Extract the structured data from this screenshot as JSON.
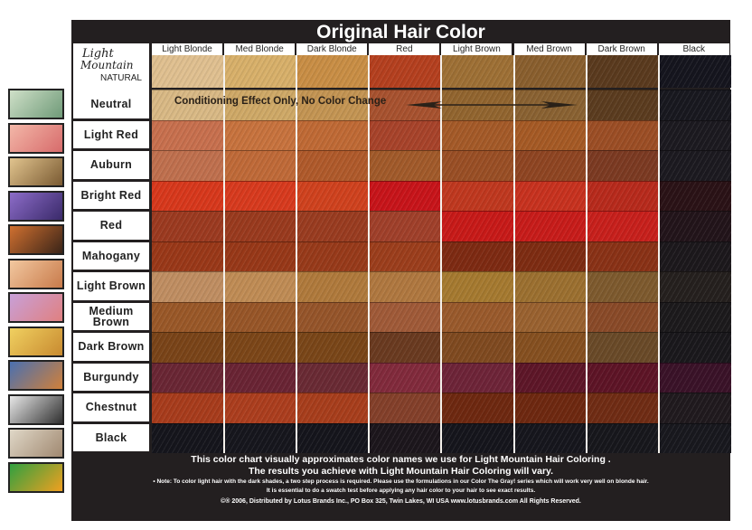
{
  "title": "Original Hair Color",
  "logo": {
    "line1": "Light",
    "line2": "Mountain",
    "line3": "NATURAL"
  },
  "columns": [
    "Light Blonde",
    "Med Blonde",
    "Dark Blonde",
    "Red",
    "Light Brown",
    "Med Brown",
    "Dark Brown",
    "Black"
  ],
  "original_colors": [
    "#e0c090",
    "#d8b06a",
    "#c98e45",
    "#b5401f",
    "#9e7035",
    "#8a5f2e",
    "#5a3a1e",
    "#15151e"
  ],
  "neutral_note": "Conditioning Effect Only, No Color Change",
  "rows": [
    {
      "label": "Neutral",
      "colors": [
        "#d9b985",
        "#cfa967",
        "#c49553",
        "#a8522f",
        "#92652f",
        "#8a6232",
        "#5b3c1f",
        "#18181f"
      ]
    },
    {
      "label": "Light Red",
      "colors": [
        "#c8704e",
        "#c8733e",
        "#c06a35",
        "#a8432a",
        "#a55a28",
        "#a65a25",
        "#9c4e25",
        "#1c1a20"
      ]
    },
    {
      "label": "Auburn",
      "colors": [
        "#c0704e",
        "#c06a38",
        "#b05a2b",
        "#a25a2a",
        "#9a4f25",
        "#8f4522",
        "#7c3a22",
        "#1c1a20"
      ]
    },
    {
      "label": "Bright Red",
      "colors": [
        "#d8381c",
        "#d83a1e",
        "#d0421e",
        "#c8141a",
        "#c0381f",
        "#c8321f",
        "#b82a1c",
        "#2a1216"
      ]
    },
    {
      "label": "Red",
      "colors": [
        "#9c3a20",
        "#9a3a1e",
        "#9a3c20",
        "#a0402a",
        "#c81a18",
        "#c81c1a",
        "#c8201c",
        "#22141a"
      ]
    },
    {
      "label": "Mahogany",
      "colors": [
        "#9a3818",
        "#983818",
        "#983a1a",
        "#9c3e1c",
        "#7e2a12",
        "#7e2c12",
        "#8a3216",
        "#1c181c"
      ]
    },
    {
      "label": "Light Brown",
      "colors": [
        "#c08e62",
        "#c08c55",
        "#b07a3c",
        "#b07840",
        "#a67a30",
        "#9c7030",
        "#7e5a2e",
        "#25201e"
      ]
    },
    {
      "label": "Medium Brown",
      "colors": [
        "#9a5828",
        "#985628",
        "#96552a",
        "#a05a38",
        "#9a5a2c",
        "#9a6230",
        "#8a4a28",
        "#1c1a1c"
      ]
    },
    {
      "label": "Dark Brown",
      "colors": [
        "#7a4418",
        "#7c4618",
        "#7a4618",
        "#6a3a20",
        "#804a20",
        "#865020",
        "#6a4a28",
        "#1a181c"
      ]
    },
    {
      "label": "Burgundy",
      "colors": [
        "#6a2634",
        "#6a2434",
        "#6a2a34",
        "#822a3c",
        "#6e2438",
        "#5e1628",
        "#5e1426",
        "#3a1228"
      ]
    },
    {
      "label": "Chestnut",
      "colors": [
        "#a83c1c",
        "#ac3e1e",
        "#a83e1c",
        "#84402a",
        "#6e2810",
        "#6e2810",
        "#702c14",
        "#201a1e"
      ]
    },
    {
      "label": "Black",
      "colors": [
        "#15151c",
        "#16161d",
        "#15151c",
        "#1c161c",
        "#15151c",
        "#16161d",
        "#17171c",
        "#18181e"
      ]
    }
  ],
  "thumbnails": [
    {
      "icon": "heron-icon",
      "colors": [
        "#cfe0c8",
        "#6f9a78"
      ]
    },
    {
      "icon": "flowers-icon",
      "colors": [
        "#f3b7a8",
        "#d76b6b"
      ]
    },
    {
      "icon": "cheetah-icon",
      "colors": [
        "#e1c48e",
        "#7a5a32"
      ]
    },
    {
      "icon": "wolf-icon",
      "colors": [
        "#8c6cc8",
        "#3a2a6a"
      ]
    },
    {
      "icon": "fox-icon",
      "colors": [
        "#d07030",
        "#3a2418"
      ]
    },
    {
      "icon": "nautilus-icon",
      "colors": [
        "#f2c8a0",
        "#c87a4a"
      ]
    },
    {
      "icon": "elephant-icon",
      "colors": [
        "#c8a0d8",
        "#e08080"
      ]
    },
    {
      "icon": "camel-icon",
      "colors": [
        "#f0d060",
        "#c88a30"
      ]
    },
    {
      "icon": "lion-icon",
      "colors": [
        "#4a70b0",
        "#d0803a"
      ]
    },
    {
      "icon": "zebra-icon",
      "colors": [
        "#e8e8e8",
        "#303030"
      ]
    },
    {
      "icon": "owls-icon",
      "colors": [
        "#e0d8c8",
        "#a08870"
      ]
    },
    {
      "icon": "toucan-icon",
      "colors": [
        "#30a040",
        "#f0a020"
      ]
    }
  ],
  "footer": {
    "line1": "This color chart visually approximates color names we use for Light Mountain Hair Coloring .",
    "line2": "The results you achieve with Light Mountain Hair Coloring will vary.",
    "note1": "• Note: To color light hair with the dark shades, a two step process is required.  Please use the formulations in our Color The Gray! series which will work very well on blonde hair.",
    "note2": "It is essential to do a swatch test before applying any hair color to your hair to see exact results.",
    "copyright": "©® 2006, Distributed by Lotus Brands Inc., PO Box 325, Twin Lakes, WI USA  www.lotusbrands.com  All Rights Reserved."
  }
}
